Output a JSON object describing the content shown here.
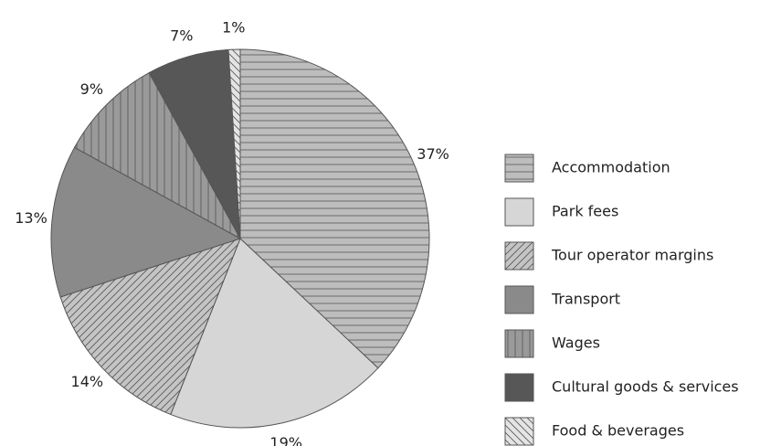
{
  "chart_data": {
    "type": "pie",
    "categories": [
      "Accommodation",
      "Park fees",
      "Tour operator margins",
      "Transport",
      "Wages",
      "Cultural goods & services",
      "Food & beverages"
    ],
    "values": [
      37,
      19,
      14,
      13,
      9,
      7,
      1
    ],
    "value_labels": [
      "37%",
      "19%",
      "14%",
      "13%",
      "9%",
      "7%",
      "1%"
    ],
    "colors": [
      "#bdbdbd",
      "#d6d6d6",
      "#c4c4c4",
      "#8a8a8a",
      "#9a9a9a",
      "#575757",
      "#e4e4e4"
    ],
    "patterns": [
      "horizontal",
      "none",
      "diagonal",
      "none",
      "vertical",
      "none",
      "antidiagonal"
    ],
    "legend": "right"
  }
}
